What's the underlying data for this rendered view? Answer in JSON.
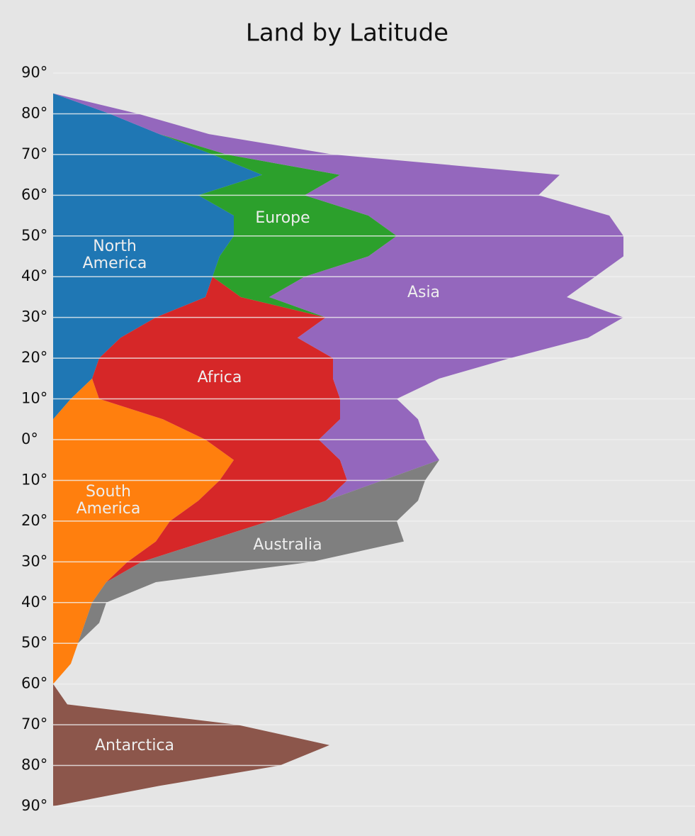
{
  "chart_data": {
    "type": "stacked_area_horizontal",
    "title": "Land by Latitude",
    "latitudes": [
      85,
      80,
      75,
      70,
      65,
      60,
      55,
      50,
      45,
      40,
      35,
      30,
      25,
      20,
      15,
      10,
      5,
      0,
      -5,
      -10,
      -15,
      -20,
      -25,
      -30,
      -35,
      -40,
      -45,
      -50,
      -55,
      -60,
      -65,
      -70,
      -75,
      -80,
      -85,
      -90
    ],
    "series": [
      {
        "name": "North America",
        "color": "#1f77b4",
        "values": [
          0,
          80,
          150,
          225,
          295,
          205,
          255,
          255,
          235,
          225,
          215,
          145,
          95,
          65,
          55,
          25,
          0,
          0,
          0,
          0,
          0,
          0,
          0,
          0,
          0,
          0,
          0,
          0,
          0,
          0,
          0,
          0,
          0,
          0,
          0,
          0
        ]
      },
      {
        "name": "South America",
        "color": "#ff7f0e",
        "values": [
          0,
          0,
          0,
          0,
          0,
          0,
          0,
          0,
          0,
          0,
          0,
          0,
          0,
          0,
          0,
          40,
          155,
          215,
          255,
          235,
          205,
          165,
          145,
          105,
          75,
          55,
          45,
          35,
          25,
          0,
          0,
          0,
          0,
          0,
          0,
          0
        ]
      },
      {
        "name": "Africa",
        "color": "#d62728",
        "values": [
          0,
          0,
          0,
          0,
          0,
          0,
          0,
          0,
          0,
          0,
          50,
          240,
          250,
          330,
          340,
          340,
          250,
          160,
          150,
          180,
          180,
          140,
          70,
          20,
          0,
          0,
          0,
          0,
          0,
          0,
          0,
          0,
          0,
          0,
          0,
          0
        ]
      },
      {
        "name": "Europe",
        "color": "#2ca02c",
        "values": [
          0,
          0,
          0,
          20,
          110,
          150,
          190,
          230,
          210,
          130,
          40,
          0,
          0,
          0,
          0,
          0,
          0,
          0,
          0,
          0,
          0,
          0,
          0,
          0,
          0,
          0,
          0,
          0,
          0,
          0,
          0,
          0,
          0,
          0,
          0,
          0
        ]
      },
      {
        "name": "Asia",
        "color": "#9467bd",
        "values": [
          0,
          40,
          70,
          150,
          310,
          330,
          340,
          320,
          360,
          410,
          420,
          420,
          410,
          250,
          150,
          80,
          110,
          150,
          140,
          50,
          0,
          0,
          0,
          0,
          0,
          0,
          0,
          0,
          0,
          0,
          0,
          0,
          0,
          0,
          0,
          0
        ]
      },
      {
        "name": "Australia",
        "color": "#7f7f7f",
        "values": [
          0,
          0,
          0,
          0,
          0,
          0,
          0,
          0,
          0,
          0,
          0,
          0,
          0,
          0,
          0,
          0,
          0,
          0,
          0,
          60,
          130,
          180,
          280,
          240,
          70,
          20,
          20,
          0,
          0,
          0,
          0,
          0,
          0,
          0,
          0,
          0
        ]
      },
      {
        "name": "Antarctica",
        "color": "#8c564b",
        "values": [
          0,
          0,
          0,
          0,
          0,
          0,
          0,
          0,
          0,
          0,
          0,
          0,
          0,
          0,
          0,
          0,
          0,
          0,
          0,
          0,
          0,
          0,
          0,
          0,
          0,
          0,
          0,
          0,
          0,
          0,
          20,
          260,
          390,
          320,
          150,
          0
        ]
      }
    ],
    "xlim": [
      0,
      906
    ],
    "ylim": [
      -90,
      90
    ],
    "yticks": [
      {
        "value": 90,
        "label": "90°"
      },
      {
        "value": 80,
        "label": "80°"
      },
      {
        "value": 70,
        "label": "70°"
      },
      {
        "value": 60,
        "label": "60°"
      },
      {
        "value": 50,
        "label": "50°"
      },
      {
        "value": 40,
        "label": "40°"
      },
      {
        "value": 30,
        "label": "30°"
      },
      {
        "value": 20,
        "label": "20°"
      },
      {
        "value": 10,
        "label": "10°"
      },
      {
        "value": 0,
        "label": "0°"
      },
      {
        "value": -10,
        "label": "10°"
      },
      {
        "value": -20,
        "label": "20°"
      },
      {
        "value": -30,
        "label": "30°"
      },
      {
        "value": -40,
        "label": "40°"
      },
      {
        "value": -50,
        "label": "50°"
      },
      {
        "value": -60,
        "label": "60°"
      },
      {
        "value": -70,
        "label": "70°"
      },
      {
        "value": -80,
        "label": "80°"
      },
      {
        "value": -90,
        "label": "90°"
      }
    ],
    "grid": true
  }
}
